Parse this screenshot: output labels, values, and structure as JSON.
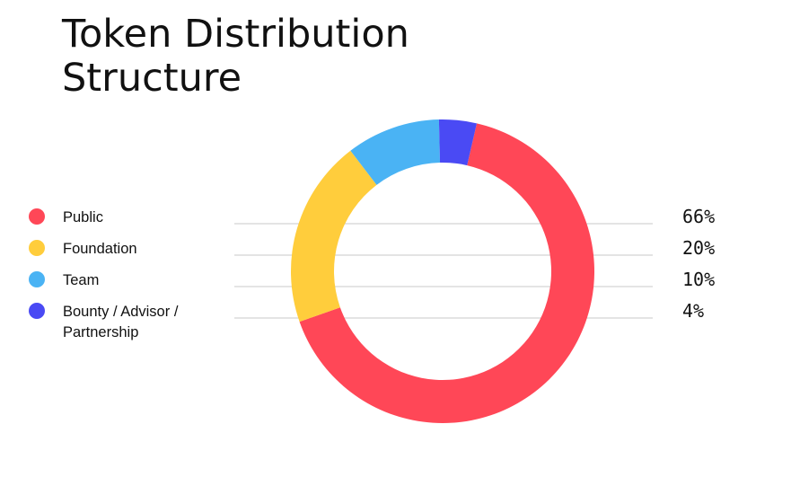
{
  "chart_data": {
    "type": "pie",
    "style": "donut",
    "title_lines": [
      "Token Distribution",
      "Structure"
    ],
    "categories": [
      "Public",
      "Foundation",
      "Team",
      "Bounty / Advisor / Partnership"
    ],
    "legend_lines": [
      [
        "Public"
      ],
      [
        "Foundation"
      ],
      [
        "Team"
      ],
      [
        "Bounty / Advisor /",
        "Partnership"
      ]
    ],
    "values": [
      66,
      20,
      10,
      4
    ],
    "value_labels": [
      "66%",
      "20%",
      "10%",
      "4%"
    ],
    "colors": [
      "#FF4757",
      "#FFCD3C",
      "#4AB3F4",
      "#4A4AF4"
    ],
    "legend_position": "left"
  }
}
